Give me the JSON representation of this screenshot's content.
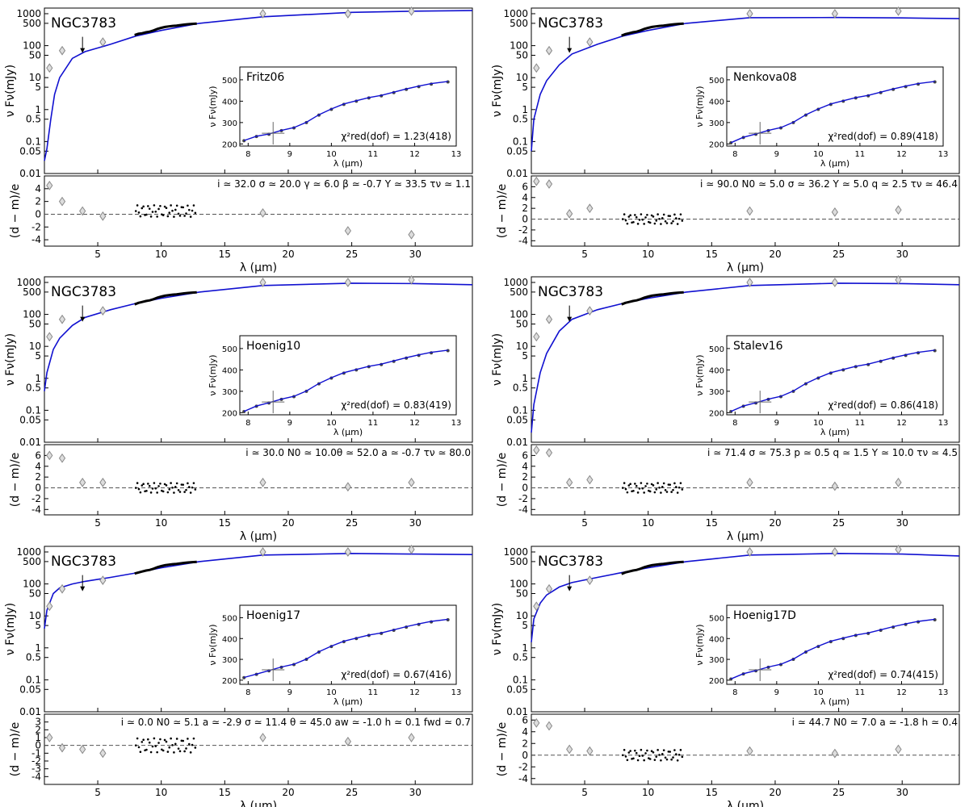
{
  "colors": {
    "model": "#1010d0",
    "data": "#000000",
    "photometry": "#888888",
    "axes": "#000000",
    "zero_line": "#555555"
  },
  "chart_data": [
    {
      "type": "line",
      "object": "NGC3783",
      "model_name": "Fritz06",
      "chi2_label": "χ²red(dof) = 1.23(418)",
      "params": "i ≃ 32.0   σ ≃ 20.0   γ ≃ 6.0    β ≃ -0.7   Y ≃ 33.5   τν ≃ 1.1",
      "ylabel": "ν Fν(mJy)",
      "res_ylabel": "(d − m)/e",
      "xlabel": "λ (μm)",
      "xlim": [
        0.8,
        34.5
      ],
      "ylim": [
        0.01,
        1500
      ],
      "yscale": "log",
      "xticks": [
        5,
        10,
        15,
        20,
        25,
        30
      ],
      "yticks": [
        1000,
        500,
        100,
        50,
        10,
        5,
        1,
        0.5,
        0.1,
        0.05,
        0.01
      ],
      "res_ylim": [
        -5,
        6
      ],
      "res_yticks": [
        4,
        2,
        0,
        -2,
        -4
      ],
      "model_x": [
        0.8,
        1.0,
        1.3,
        1.6,
        2.0,
        3.0,
        4.0,
        6.0,
        8.0,
        10.0,
        13.0,
        18.0,
        25.0,
        30.0,
        34.5
      ],
      "model_y": [
        0.025,
        0.06,
        0.5,
        3,
        10,
        40,
        65,
        110,
        200,
        300,
        500,
        800,
        1100,
        1200,
        1250
      ],
      "photometry_x": [
        1.2,
        2.2,
        3.8,
        5.4,
        18.0,
        24.7,
        29.7
      ],
      "photometry_y": [
        20,
        70,
        150,
        130,
        1000,
        1000,
        1200
      ],
      "residual_x": [
        1.2,
        2.2,
        3.8,
        5.4,
        18.0,
        24.7,
        29.7
      ],
      "residual_y": [
        4.5,
        2.0,
        0.5,
        -0.3,
        0.2,
        -2.6,
        -3.2
      ],
      "spectrum_residual_level": 0.5,
      "inset": {
        "xlim": [
          7.8,
          13
        ],
        "ylim": [
          190,
          560
        ],
        "xticks": [
          8,
          9,
          10,
          11,
          12,
          13
        ],
        "yticks": [
          200,
          300,
          400,
          500
        ],
        "xlabel": "λ (μm)",
        "ylabel": "ν Fν(mJy)",
        "data_x": [
          7.9,
          8.2,
          8.5,
          8.8,
          9.1,
          9.4,
          9.7,
          10.0,
          10.3,
          10.6,
          10.9,
          11.2,
          11.5,
          11.8,
          12.1,
          12.4,
          12.8
        ],
        "data_y": [
          215,
          235,
          245,
          262,
          275,
          300,
          335,
          362,
          385,
          400,
          415,
          425,
          440,
          455,
          468,
          480,
          490
        ]
      }
    },
    {
      "type": "line",
      "object": "NGC3783",
      "model_name": "Nenkova08",
      "chi2_label": "χ²red(dof) = 0.89(418)",
      "params": "i ≃ 90.0   N0 ≃ 5.0   σ ≃ 36.2   Y ≃ 5.0    q ≃ 2.5    τν ≃ 46.4",
      "ylabel": "ν Fν(mJy)",
      "res_ylabel": "(d − m)/e",
      "xlabel": "λ (μm)",
      "xlim": [
        0.8,
        34.5
      ],
      "ylim": [
        0.01,
        1500
      ],
      "yscale": "log",
      "xticks": [
        5,
        10,
        15,
        20,
        25,
        30
      ],
      "yticks": [
        1000,
        500,
        100,
        50,
        10,
        5,
        1,
        0.5,
        0.1,
        0.05,
        0.01
      ],
      "res_ylim": [
        -5,
        8
      ],
      "res_yticks": [
        6,
        4,
        2,
        0,
        -2,
        -4
      ],
      "model_x": [
        0.8,
        1.0,
        1.5,
        2.0,
        3.0,
        4.0,
        6.0,
        8.0,
        10.0,
        13.0,
        18.0,
        25.0,
        30.0,
        34.5
      ],
      "model_y": [
        0.05,
        0.5,
        3,
        8,
        25,
        55,
        110,
        200,
        300,
        500,
        750,
        760,
        740,
        700
      ],
      "photometry_x": [
        1.2,
        2.2,
        3.8,
        5.4,
        18.0,
        24.7,
        29.7
      ],
      "photometry_y": [
        20,
        70,
        150,
        130,
        1000,
        1000,
        1200
      ],
      "residual_x": [
        1.2,
        2.2,
        3.8,
        5.4,
        18.0,
        24.7,
        29.7
      ],
      "residual_y": [
        7.0,
        6.5,
        1.0,
        2.0,
        1.5,
        1.3,
        1.7
      ],
      "spectrum_residual_level": 0.0,
      "inset": {
        "xlim": [
          7.8,
          13
        ],
        "ylim": [
          190,
          560
        ],
        "xticks": [
          8,
          9,
          10,
          11,
          12,
          13
        ],
        "yticks": [
          200,
          300,
          400,
          500
        ],
        "xlabel": "λ (μm)",
        "ylabel": "ν Fν(mJy)",
        "data_x": [
          7.9,
          8.2,
          8.5,
          8.8,
          9.1,
          9.4,
          9.7,
          10.0,
          10.3,
          10.6,
          10.9,
          11.2,
          11.5,
          11.8,
          12.1,
          12.4,
          12.8
        ],
        "data_y": [
          205,
          230,
          245,
          262,
          275,
          300,
          335,
          362,
          385,
          400,
          415,
          425,
          440,
          455,
          468,
          480,
          490
        ]
      }
    },
    {
      "type": "line",
      "object": "NGC3783",
      "model_name": "Hoenig10",
      "chi2_label": "χ²red(dof) = 0.83(419)",
      "params": "i ≃ 30.0   N0 ≃ 10.0θ ≃ 52.0   a ≃ -0.7    τν ≃ 80.0",
      "ylabel": "ν Fν(mJy)",
      "res_ylabel": "(d − m)/e",
      "xlabel": "λ (μm)",
      "xlim": [
        0.8,
        34.5
      ],
      "ylim": [
        0.01,
        1500
      ],
      "yscale": "log",
      "xticks": [
        5,
        10,
        15,
        20,
        25,
        30
      ],
      "yticks": [
        1000,
        500,
        100,
        50,
        10,
        5,
        1,
        0.5,
        0.1,
        0.05,
        0.01
      ],
      "res_ylim": [
        -5,
        8
      ],
      "res_yticks": [
        6,
        4,
        2,
        0,
        -2,
        -4
      ],
      "model_x": [
        0.8,
        1.0,
        1.5,
        2.0,
        3.0,
        4.0,
        6.0,
        8.0,
        10.0,
        13.0,
        18.0,
        25.0,
        30.0,
        34.5
      ],
      "model_y": [
        0.4,
        1.5,
        8,
        18,
        45,
        80,
        140,
        220,
        320,
        500,
        800,
        950,
        920,
        850
      ],
      "photometry_x": [
        1.2,
        2.2,
        3.8,
        5.4,
        18.0,
        24.7,
        29.7
      ],
      "photometry_y": [
        20,
        70,
        150,
        130,
        1000,
        1000,
        1200
      ],
      "residual_x": [
        1.2,
        2.2,
        3.8,
        5.4,
        18.0,
        24.7,
        29.7
      ],
      "residual_y": [
        6.0,
        5.5,
        1.0,
        1.0,
        1.0,
        0.2,
        1.0
      ],
      "spectrum_residual_level": 0.0,
      "inset": {
        "xlim": [
          7.8,
          13
        ],
        "ylim": [
          190,
          560
        ],
        "xticks": [
          8,
          9,
          10,
          11,
          12,
          13
        ],
        "yticks": [
          200,
          300,
          400,
          500
        ],
        "xlabel": "λ (μm)",
        "ylabel": "ν Fν(mJy)",
        "data_x": [
          7.9,
          8.2,
          8.5,
          8.8,
          9.1,
          9.4,
          9.7,
          10.0,
          10.3,
          10.6,
          10.9,
          11.2,
          11.5,
          11.8,
          12.1,
          12.4,
          12.8
        ],
        "data_y": [
          205,
          230,
          245,
          262,
          275,
          300,
          335,
          362,
          385,
          400,
          415,
          425,
          440,
          455,
          468,
          480,
          490
        ]
      }
    },
    {
      "type": "line",
      "object": "NGC3783",
      "model_name": "Stalev16",
      "chi2_label": "χ²red(dof) = 0.86(418)",
      "params": "i ≃ 71.4   σ ≃ 75.3   p ≃ 0.5    q ≃ 1.5    Y ≃ 10.0   τν ≃ 4.5",
      "ylabel": "ν Fν(mJy)",
      "res_ylabel": "(d − m)/e",
      "xlabel": "λ (μm)",
      "xlim": [
        0.8,
        34.5
      ],
      "ylim": [
        0.01,
        1500
      ],
      "yscale": "log",
      "xticks": [
        5,
        10,
        15,
        20,
        25,
        30
      ],
      "yticks": [
        1000,
        500,
        100,
        50,
        10,
        5,
        1,
        0.5,
        0.1,
        0.05,
        0.01
      ],
      "res_ylim": [
        -5,
        8
      ],
      "res_yticks": [
        6,
        4,
        2,
        0,
        -2,
        -4
      ],
      "model_x": [
        0.8,
        1.0,
        1.5,
        2.0,
        3.0,
        4.0,
        6.0,
        8.0,
        10.0,
        13.0,
        18.0,
        25.0,
        30.0,
        34.5
      ],
      "model_y": [
        0.02,
        0.15,
        1.5,
        6,
        30,
        70,
        140,
        220,
        320,
        500,
        800,
        950,
        920,
        850
      ],
      "photometry_x": [
        1.2,
        2.2,
        3.8,
        5.4,
        18.0,
        24.7,
        29.7
      ],
      "photometry_y": [
        20,
        70,
        150,
        130,
        1000,
        1000,
        1200
      ],
      "residual_x": [
        1.2,
        2.2,
        3.8,
        5.4,
        18.0,
        24.7,
        29.7
      ],
      "residual_y": [
        7.0,
        6.5,
        1.0,
        1.5,
        1.0,
        0.3,
        1.0
      ],
      "spectrum_residual_level": 0.0,
      "inset": {
        "xlim": [
          7.8,
          13
        ],
        "ylim": [
          190,
          560
        ],
        "xticks": [
          8,
          9,
          10,
          11,
          12,
          13
        ],
        "yticks": [
          200,
          300,
          400,
          500
        ],
        "xlabel": "λ (μm)",
        "ylabel": "ν Fν(mJy)",
        "data_x": [
          7.9,
          8.2,
          8.5,
          8.8,
          9.1,
          9.4,
          9.7,
          10.0,
          10.3,
          10.6,
          10.9,
          11.2,
          11.5,
          11.8,
          12.1,
          12.4,
          12.8
        ],
        "data_y": [
          205,
          230,
          245,
          262,
          275,
          300,
          335,
          362,
          385,
          400,
          415,
          425,
          440,
          455,
          468,
          480,
          490
        ]
      }
    },
    {
      "type": "line",
      "object": "NGC3783",
      "model_name": "Hoenig17",
      "chi2_label": "χ²red(dof) = 0.67(416)",
      "params": "i ≃ 0.0    N0 ≃ 5.1   a ≃ -2.9   σ ≃ 11.4   θ ≃ 45.0   aw ≃ -1.0  h ≃ 0.1    fwd ≃ 0.7",
      "ylabel": "ν Fν(mJy)",
      "res_ylabel": "(d − m)/e",
      "xlabel": "λ (μm)",
      "xlim": [
        0.8,
        34.5
      ],
      "ylim": [
        0.01,
        1500
      ],
      "yscale": "log",
      "xticks": [
        5,
        10,
        15,
        20,
        25,
        30
      ],
      "yticks": [
        1000,
        500,
        100,
        50,
        10,
        5,
        1,
        0.5,
        0.1,
        0.05,
        0.01
      ],
      "res_ylim": [
        -5,
        4
      ],
      "res_yticks": [
        3,
        2,
        1,
        0,
        -1,
        -2,
        -3,
        -4
      ],
      "model_x": [
        0.8,
        1.0,
        1.5,
        2.0,
        3.0,
        4.0,
        6.0,
        8.0,
        10.0,
        13.0,
        18.0,
        25.0,
        30.0,
        34.5
      ],
      "model_y": [
        4,
        15,
        50,
        75,
        100,
        120,
        160,
        220,
        320,
        500,
        800,
        900,
        860,
        830
      ],
      "photometry_x": [
        1.2,
        2.2,
        3.8,
        5.4,
        18.0,
        24.7,
        29.7
      ],
      "photometry_y": [
        20,
        70,
        150,
        130,
        1000,
        1000,
        1200
      ],
      "residual_x": [
        1.2,
        2.2,
        3.8,
        5.4,
        18.0,
        24.7,
        29.7
      ],
      "residual_y": [
        1.0,
        -0.3,
        -0.5,
        -1.0,
        1.0,
        0.5,
        1.0
      ],
      "spectrum_residual_level": 0.0,
      "inset": {
        "xlim": [
          7.8,
          13
        ],
        "ylim": [
          180,
          560
        ],
        "xticks": [
          8,
          9,
          10,
          11,
          12,
          13
        ],
        "yticks": [
          200,
          300,
          400,
          500
        ],
        "xlabel": "λ (μm)",
        "ylabel": "ν Fν(mJy)",
        "data_x": [
          7.9,
          8.2,
          8.5,
          8.8,
          9.1,
          9.4,
          9.7,
          10.0,
          10.3,
          10.6,
          10.9,
          11.2,
          11.5,
          11.8,
          12.1,
          12.4,
          12.8
        ],
        "data_y": [
          212,
          228,
          245,
          262,
          275,
          300,
          335,
          362,
          385,
          400,
          415,
          425,
          440,
          455,
          468,
          480,
          490
        ]
      }
    },
    {
      "type": "line",
      "object": "NGC3783",
      "model_name": "Hoenig17D",
      "chi2_label": "χ²red(dof) = 0.74(415)",
      "params": "i ≃ 44.7   N0 ≃ 7.0   a ≃ -1.8   h ≃ 0.4",
      "ylabel": "ν Fν(mJy)",
      "res_ylabel": "(d − m)/e",
      "xlabel": "λ (μm)",
      "xlim": [
        0.8,
        34.5
      ],
      "ylim": [
        0.01,
        1500
      ],
      "yscale": "log",
      "xticks": [
        5,
        10,
        15,
        20,
        25,
        30
      ],
      "yticks": [
        1000,
        500,
        100,
        50,
        10,
        5,
        1,
        0.5,
        0.1,
        0.05,
        0.01
      ],
      "res_ylim": [
        -5,
        7
      ],
      "res_yticks": [
        6,
        4,
        2,
        0,
        -2,
        -4
      ],
      "model_x": [
        0.8,
        1.0,
        1.5,
        2.0,
        3.0,
        4.0,
        6.0,
        8.0,
        10.0,
        13.0,
        18.0,
        25.0,
        30.0,
        34.5
      ],
      "model_y": [
        1.5,
        8,
        25,
        45,
        80,
        110,
        160,
        230,
        320,
        500,
        800,
        900,
        860,
        750
      ],
      "photometry_x": [
        1.2,
        2.2,
        3.8,
        5.4,
        18.0,
        24.7,
        29.7
      ],
      "photometry_y": [
        20,
        70,
        150,
        130,
        1000,
        1000,
        1200
      ],
      "residual_x": [
        1.2,
        2.2,
        3.8,
        5.4,
        18.0,
        24.7,
        29.7
      ],
      "residual_y": [
        5.5,
        5.0,
        1.0,
        0.7,
        0.7,
        0.3,
        1.0
      ],
      "spectrum_residual_level": 0.0,
      "inset": {
        "xlim": [
          7.8,
          13
        ],
        "ylim": [
          180,
          560
        ],
        "xticks": [
          8,
          9,
          10,
          11,
          12,
          13
        ],
        "yticks": [
          200,
          300,
          400,
          500
        ],
        "xlabel": "λ (μm)",
        "ylabel": "ν Fν(mJy)",
        "data_x": [
          7.9,
          8.2,
          8.5,
          8.8,
          9.1,
          9.4,
          9.7,
          10.0,
          10.3,
          10.6,
          10.9,
          11.2,
          11.5,
          11.8,
          12.1,
          12.4,
          12.8
        ],
        "data_y": [
          205,
          230,
          245,
          262,
          275,
          300,
          335,
          362,
          385,
          400,
          415,
          425,
          440,
          455,
          468,
          480,
          490
        ]
      }
    }
  ]
}
